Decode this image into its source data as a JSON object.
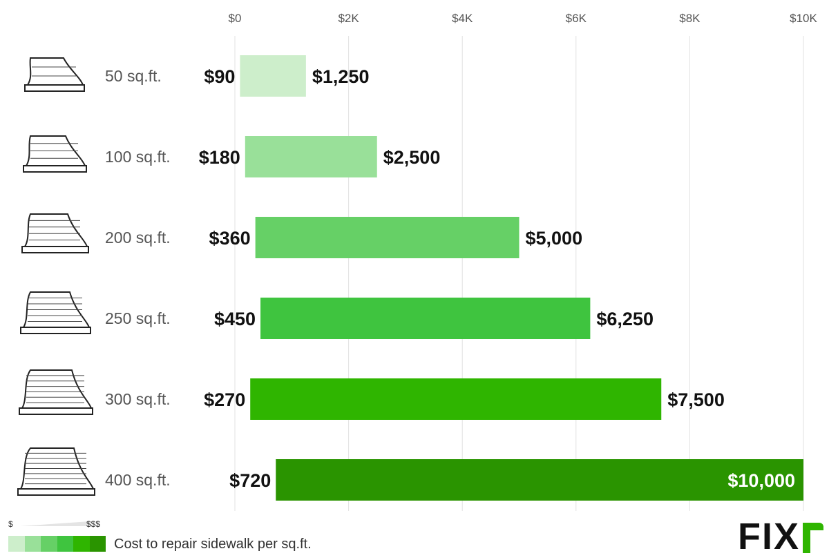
{
  "chart_data": {
    "type": "bar",
    "orientation": "horizontal",
    "range_bars": true,
    "xlim": [
      0,
      10000
    ],
    "x_ticks": [
      0,
      2000,
      4000,
      6000,
      8000,
      10000
    ],
    "x_tick_labels": [
      "$0",
      "$2K",
      "$4K",
      "$6K",
      "$8K",
      "$10K"
    ],
    "grid": "vertical",
    "categories": [
      "50 sq.ft.",
      "100 sq.ft.",
      "200 sq.ft.",
      "250 sq.ft.",
      "300 sq.ft.",
      "400 sq.ft."
    ],
    "low": [
      90,
      180,
      360,
      450,
      270,
      720
    ],
    "high": [
      1250,
      2500,
      5000,
      6250,
      7500,
      10000
    ],
    "low_labels": [
      "$90",
      "$180",
      "$360",
      "$450",
      "$270",
      "$720"
    ],
    "high_labels": [
      "$1,250",
      "$2,500",
      "$5,000",
      "$6,250",
      "$7,500",
      "$10,000"
    ],
    "colors": [
      "#cdeecb",
      "#99e099",
      "#66d066",
      "#3fc43f",
      "#2fb500",
      "#2a9400"
    ],
    "icons": [
      "sidewalk-icon",
      "sidewalk-icon",
      "sidewalk-icon",
      "sidewalk-icon",
      "sidewalk-icon",
      "sidewalk-icon"
    ]
  },
  "legend": {
    "low_label": "$",
    "high_label": "$$$",
    "caption": "Cost to repair sidewalk per sq.ft.",
    "swatch_colors": [
      "#cdeecb",
      "#99e099",
      "#66d066",
      "#3fc43f",
      "#2fb500",
      "#2a9400"
    ]
  },
  "brand": {
    "logo_text": "FIX",
    "accent": "#2fb500"
  }
}
